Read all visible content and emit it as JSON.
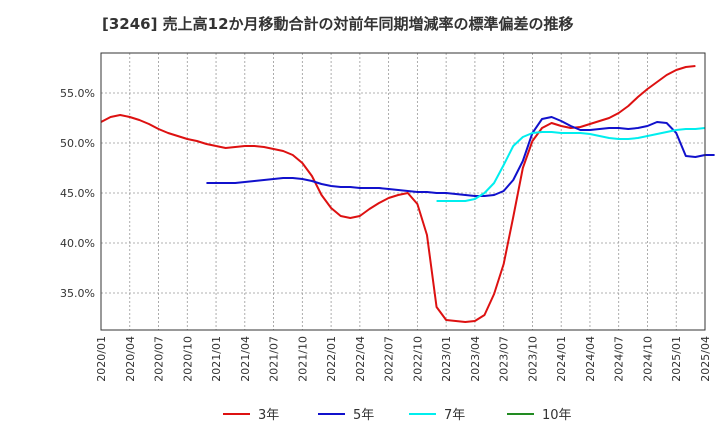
{
  "chart_data": {
    "type": "line",
    "title": "[3246]  売上高12か月移動合計の対前年同期増減率の標準偏差の推移",
    "xlabel": "",
    "ylabel": "",
    "ylim": [
      31.3,
      59.0
    ],
    "xlim": [
      "2020-01",
      "2025-04"
    ],
    "grid": true,
    "legend_position": "bottom",
    "y_ticks": [
      "35.0%",
      "40.0%",
      "45.0%",
      "50.0%",
      "55.0%"
    ],
    "y_tick_values": [
      35,
      40,
      45,
      50,
      55
    ],
    "x_ticks": [
      "2020/01",
      "2020/04",
      "2020/07",
      "2020/10",
      "2021/01",
      "2021/04",
      "2021/07",
      "2021/10",
      "2022/01",
      "2022/04",
      "2022/07",
      "2022/10",
      "2023/01",
      "2023/04",
      "2023/07",
      "2023/10",
      "2024/01",
      "2024/04",
      "2024/07",
      "2024/10",
      "2025/01",
      "2025/04"
    ],
    "series": [
      {
        "name": "3年",
        "color": "#dd1111",
        "start": "2020-01",
        "values": [
          52.1,
          52.6,
          52.8,
          52.6,
          52.3,
          51.9,
          51.4,
          51.0,
          50.7,
          50.4,
          50.2,
          49.9,
          49.7,
          49.5,
          49.6,
          49.7,
          49.7,
          49.6,
          49.4,
          49.2,
          48.8,
          48.0,
          46.7,
          44.8,
          43.5,
          42.7,
          42.5,
          42.7,
          43.4,
          44.0,
          44.5,
          44.8,
          45.0,
          43.9,
          40.8,
          33.6,
          32.3,
          32.2,
          32.1,
          32.2,
          32.8,
          34.9,
          37.9,
          42.6,
          47.5,
          50.2,
          51.5,
          52.0,
          51.7,
          51.5,
          51.6,
          51.9,
          52.2,
          52.5,
          53.0,
          53.7,
          54.6,
          55.4,
          56.1,
          56.8,
          57.3,
          57.6,
          57.7
        ]
      },
      {
        "name": "5年",
        "color": "#1111cc",
        "start": "2020-12",
        "values": [
          46.0,
          46.0,
          46.0,
          46.0,
          46.1,
          46.2,
          46.3,
          46.4,
          46.5,
          46.5,
          46.4,
          46.2,
          45.9,
          45.7,
          45.6,
          45.6,
          45.5,
          45.5,
          45.5,
          45.4,
          45.3,
          45.2,
          45.1,
          45.1,
          45.0,
          45.0,
          44.9,
          44.8,
          44.7,
          44.7,
          44.8,
          45.2,
          46.3,
          48.2,
          51.0,
          52.4,
          52.6,
          52.2,
          51.7,
          51.3,
          51.3,
          51.4,
          51.5,
          51.5,
          51.4,
          51.5,
          51.7,
          52.1,
          52.0,
          51.0,
          48.7,
          48.6,
          48.8,
          48.8
        ]
      },
      {
        "name": "7年",
        "color": "#00eeee",
        "start": "2022-12",
        "values": [
          44.2,
          44.2,
          44.2,
          44.2,
          44.4,
          45.0,
          46.0,
          47.8,
          49.7,
          50.6,
          51.0,
          51.1,
          51.1,
          51.0,
          51.0,
          51.0,
          50.9,
          50.7,
          50.5,
          50.4,
          50.4,
          50.5,
          50.7,
          50.9,
          51.1,
          51.3,
          51.4,
          51.4,
          51.5
        ]
      },
      {
        "name": "10年",
        "color": "#228b22",
        "start": "",
        "values": []
      }
    ]
  }
}
